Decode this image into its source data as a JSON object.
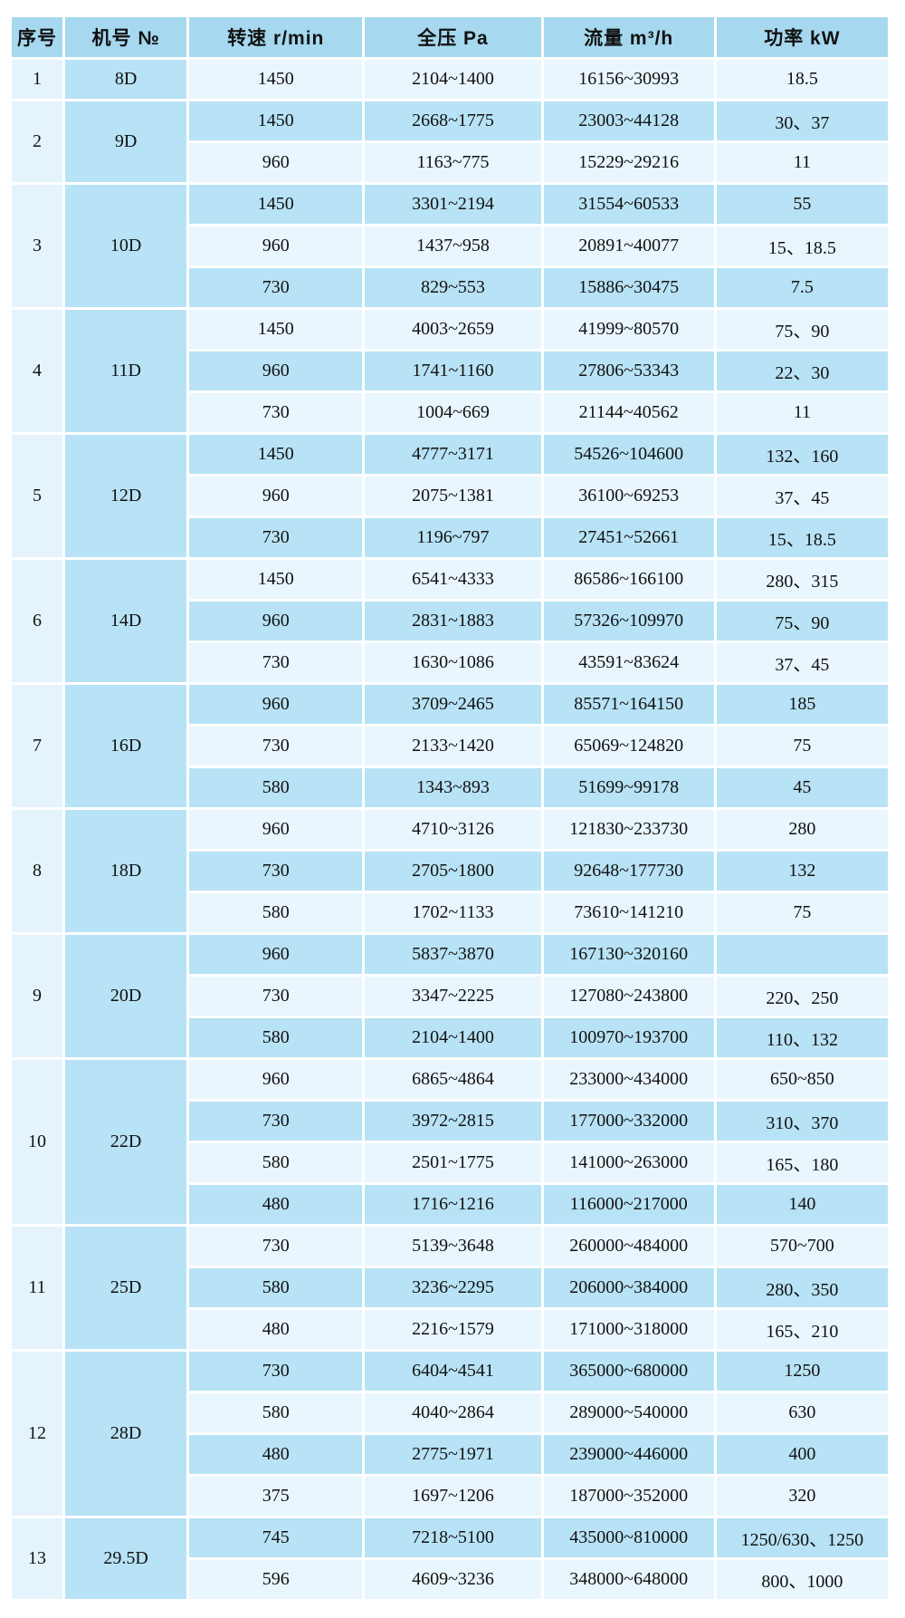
{
  "colors": {
    "header_bg": "#a6d8ef",
    "model_cell_bg": "#b8e2f5",
    "row_dark_bg": "#b8e2f5",
    "row_light_bg": "#e9f6fd",
    "serial_cell_bg": "#e5f4fc",
    "gridline": "#ffffff",
    "text": "#111111"
  },
  "chart_data": {
    "type": "table",
    "title": "",
    "columns": [
      "序号",
      "机号 №",
      "转速 r/min",
      "全压 Pa",
      "流量 m³/h",
      "功率 kW"
    ],
    "column_keys": [
      "serial",
      "model",
      "speed",
      "pressure",
      "flow",
      "power"
    ],
    "groups": [
      {
        "serial": "1",
        "model": "8D",
        "rows": [
          [
            "1450",
            "2104~1400",
            "16156~30993",
            "18.5"
          ]
        ]
      },
      {
        "serial": "2",
        "model": "9D",
        "rows": [
          [
            "1450",
            "2668~1775",
            "23003~44128",
            "30、37"
          ],
          [
            "960",
            "1163~775",
            "15229~29216",
            "11"
          ]
        ]
      },
      {
        "serial": "3",
        "model": "10D",
        "rows": [
          [
            "1450",
            "3301~2194",
            "31554~60533",
            "55"
          ],
          [
            "960",
            "1437~958",
            "20891~40077",
            "15、18.5"
          ],
          [
            "730",
            "829~553",
            "15886~30475",
            "7.5"
          ]
        ]
      },
      {
        "serial": "4",
        "model": "11D",
        "rows": [
          [
            "1450",
            "4003~2659",
            "41999~80570",
            "75、90"
          ],
          [
            "960",
            "1741~1160",
            "27806~53343",
            "22、30"
          ],
          [
            "730",
            "1004~669",
            "21144~40562",
            "11"
          ]
        ]
      },
      {
        "serial": "5",
        "model": "12D",
        "rows": [
          [
            "1450",
            "4777~3171",
            "54526~104600",
            "132、160"
          ],
          [
            "960",
            "2075~1381",
            "36100~69253",
            "37、45"
          ],
          [
            "730",
            "1196~797",
            "27451~52661",
            "15、18.5"
          ]
        ]
      },
      {
        "serial": "6",
        "model": "14D",
        "rows": [
          [
            "1450",
            "6541~4333",
            "86586~166100",
            "280、315"
          ],
          [
            "960",
            "2831~1883",
            "57326~109970",
            "75、90"
          ],
          [
            "730",
            "1630~1086",
            "43591~83624",
            "37、45"
          ]
        ]
      },
      {
        "serial": "7",
        "model": "16D",
        "rows": [
          [
            "960",
            "3709~2465",
            "85571~164150",
            "185"
          ],
          [
            "730",
            "2133~1420",
            "65069~124820",
            "75"
          ],
          [
            "580",
            "1343~893",
            "51699~99178",
            "45"
          ]
        ]
      },
      {
        "serial": "8",
        "model": "18D",
        "rows": [
          [
            "960",
            "4710~3126",
            "121830~233730",
            "280"
          ],
          [
            "730",
            "2705~1800",
            "92648~177730",
            "132"
          ],
          [
            "580",
            "1702~1133",
            "73610~141210",
            "75"
          ]
        ]
      },
      {
        "serial": "9",
        "model": "20D",
        "rows": [
          [
            "960",
            "5837~3870",
            "167130~320160",
            ""
          ],
          [
            "730",
            "3347~2225",
            "127080~243800",
            "220、250"
          ],
          [
            "580",
            "2104~1400",
            "100970~193700",
            "110、132"
          ]
        ]
      },
      {
        "serial": "10",
        "model": "22D",
        "rows": [
          [
            "960",
            "6865~4864",
            "233000~434000",
            "650~850"
          ],
          [
            "730",
            "3972~2815",
            "177000~332000",
            "310、370"
          ],
          [
            "580",
            "2501~1775",
            "141000~263000",
            "165、180"
          ],
          [
            "480",
            "1716~1216",
            "116000~217000",
            "140"
          ]
        ]
      },
      {
        "serial": "11",
        "model": "25D",
        "rows": [
          [
            "730",
            "5139~3648",
            "260000~484000",
            "570~700"
          ],
          [
            "580",
            "3236~2295",
            "206000~384000",
            "280、350"
          ],
          [
            "480",
            "2216~1579",
            "171000~318000",
            "165、210"
          ]
        ]
      },
      {
        "serial": "12",
        "model": "28D",
        "rows": [
          [
            "730",
            "6404~4541",
            "365000~680000",
            "1250"
          ],
          [
            "580",
            "4040~2864",
            "289000~540000",
            "630"
          ],
          [
            "480",
            "2775~1971",
            "239000~446000",
            "400"
          ],
          [
            "375",
            "1697~1206",
            "187000~352000",
            "320"
          ]
        ]
      },
      {
        "serial": "13",
        "model": "29.5D",
        "rows": [
          [
            "745",
            "7218~5100",
            "435000~810000",
            "1250/630、1250"
          ],
          [
            "596",
            "4609~3236",
            "348000~648000",
            "800、1000"
          ]
        ]
      }
    ]
  }
}
